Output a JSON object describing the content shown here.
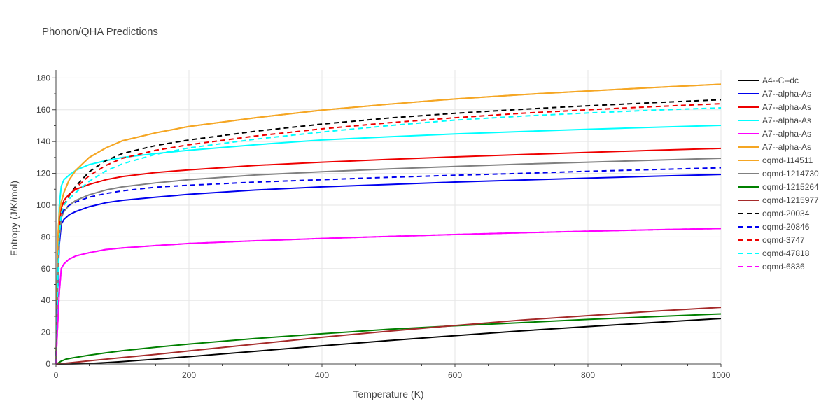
{
  "chart_data": {
    "type": "line",
    "title": "Phonon/QHA Predictions",
    "xlabel": "Temperature (K)",
    "ylabel": "Entropy (J/K/mol)",
    "xlim": [
      0,
      1000
    ],
    "ylim": [
      0,
      185
    ],
    "x_ticks": [
      "0",
      "200",
      "400",
      "600",
      "800",
      "1000"
    ],
    "y_ticks": [
      "0",
      "20",
      "40",
      "60",
      "80",
      "100",
      "120",
      "140",
      "160",
      "180"
    ],
    "grid": true,
    "legend_position": "right",
    "series": [
      {
        "name": "A4--C--dc",
        "color": "#000000",
        "dash": "solid",
        "x": [
          0,
          25,
          50,
          75,
          100,
          150,
          200,
          300,
          400,
          500,
          600,
          700,
          800,
          900,
          1000
        ],
        "y": [
          0,
          0.05,
          0.3,
          0.8,
          1.5,
          3.0,
          4.6,
          8.0,
          11.4,
          14.7,
          17.8,
          20.8,
          23.5,
          26.1,
          28.6
        ]
      },
      {
        "name": "A7--alpha-As",
        "color": "#0000ee",
        "dash": "solid",
        "x": [
          0,
          2,
          5,
          8,
          12,
          20,
          30,
          50,
          75,
          100,
          150,
          200,
          300,
          400,
          500,
          600,
          700,
          800,
          900,
          1000
        ],
        "y": [
          0,
          40,
          75,
          88,
          91,
          94,
          96,
          99,
          101.5,
          103,
          105,
          106.8,
          109.5,
          111.5,
          113,
          114.5,
          115.8,
          117,
          118.2,
          119.3
        ]
      },
      {
        "name": "A7--alpha-As",
        "color": "#ee0000",
        "dash": "solid",
        "x": [
          0,
          2,
          5,
          8,
          12,
          20,
          30,
          50,
          75,
          100,
          150,
          200,
          300,
          400,
          500,
          600,
          700,
          800,
          900,
          1000
        ],
        "y": [
          0,
          45,
          85,
          98,
          103,
          107,
          110,
          113,
          116,
          118,
          120.5,
          122.2,
          125,
          127,
          128.8,
          130.4,
          131.8,
          133.2,
          134.5,
          135.7
        ]
      },
      {
        "name": "A7--alpha-As",
        "color": "#00ffff",
        "dash": "solid",
        "x": [
          0,
          2,
          5,
          8,
          12,
          20,
          30,
          50,
          75,
          100,
          150,
          200,
          300,
          400,
          500,
          600,
          700,
          800,
          900,
          1000
        ],
        "y": [
          0,
          60,
          100,
          112,
          116,
          119,
          122,
          125.5,
          128,
          130,
          132.5,
          134.5,
          138,
          141,
          143,
          144.8,
          146.3,
          147.7,
          149,
          150.2
        ]
      },
      {
        "name": "A7--alpha-As",
        "color": "#ff00ff",
        "dash": "solid",
        "x": [
          0,
          2,
          5,
          8,
          12,
          20,
          30,
          50,
          75,
          100,
          150,
          200,
          300,
          400,
          500,
          600,
          700,
          800,
          900,
          1000
        ],
        "y": [
          0,
          20,
          45,
          60,
          63,
          66,
          68,
          70,
          72,
          73,
          74.5,
          75.8,
          77.5,
          79,
          80.3,
          81.5,
          82.6,
          83.6,
          84.5,
          85.3
        ]
      },
      {
        "name": "A7--alpha-As",
        "color": "#f5a623",
        "dash": "solid",
        "x": [
          0,
          3,
          5,
          8,
          12,
          20,
          30,
          50,
          75,
          100,
          150,
          200,
          300,
          400,
          500,
          600,
          700,
          800,
          900,
          1000
        ],
        "y": [
          0,
          80,
          95,
          102,
          108,
          116,
          122,
          130,
          136,
          140.5,
          145.5,
          149.5,
          155,
          159.8,
          163.5,
          166.8,
          169.5,
          171.8,
          174,
          176
        ]
      },
      {
        "name": "oqmd-114511",
        "color": "#f5a623",
        "dash": "solid",
        "x": [
          0,
          3,
          5,
          8,
          12,
          20,
          30,
          50,
          75,
          100,
          150,
          200,
          300,
          400,
          500,
          600,
          700,
          800,
          900,
          1000
        ],
        "y": [
          0,
          80,
          95,
          102,
          108,
          116,
          122,
          130,
          136,
          140.5,
          145.5,
          149.5,
          155,
          159.8,
          163.5,
          166.8,
          169.5,
          171.8,
          174,
          176
        ]
      },
      {
        "name": "oqmd-1214730",
        "color": "#808080",
        "dash": "solid",
        "x": [
          0,
          2,
          5,
          8,
          12,
          20,
          30,
          50,
          75,
          100,
          150,
          200,
          300,
          400,
          500,
          600,
          700,
          800,
          900,
          1000
        ],
        "y": [
          0,
          40,
          78,
          92,
          96,
          100,
          103,
          106.5,
          109.5,
          111.5,
          114,
          116,
          119,
          121,
          122.8,
          124.3,
          125.8,
          127,
          128.3,
          129.5
        ]
      },
      {
        "name": "oqmd-1215264",
        "color": "#008000",
        "dash": "solid",
        "x": [
          0,
          3,
          8,
          15,
          25,
          50,
          75,
          100,
          150,
          200,
          300,
          400,
          500,
          600,
          700,
          800,
          900,
          1000
        ],
        "y": [
          0,
          0.5,
          1.8,
          3.0,
          3.8,
          5.5,
          7.0,
          8.3,
          10.5,
          12.5,
          16.0,
          19.0,
          21.8,
          24.0,
          26.0,
          28.0,
          29.8,
          31.5
        ]
      },
      {
        "name": "oqmd-1215977",
        "color": "#a52a2a",
        "dash": "solid",
        "x": [
          0,
          10,
          25,
          50,
          75,
          100,
          150,
          200,
          300,
          400,
          500,
          600,
          700,
          800,
          900,
          1000
        ],
        "y": [
          0,
          0.3,
          0.9,
          2.0,
          3.0,
          4.0,
          6.0,
          8.2,
          12.5,
          16.8,
          20.6,
          24.2,
          27.6,
          30.4,
          33.2,
          35.6
        ]
      },
      {
        "name": "oqmd-20034",
        "color": "#000000",
        "dash": "dash",
        "x": [
          0,
          3,
          5,
          8,
          12,
          20,
          30,
          50,
          75,
          100,
          150,
          200,
          300,
          400,
          500,
          600,
          700,
          800,
          900,
          1000
        ],
        "y": [
          0,
          55,
          80,
          96,
          100,
          106,
          112,
          121,
          128,
          132.5,
          137.5,
          141,
          146.5,
          151,
          154.8,
          157.8,
          160.3,
          162.5,
          164.5,
          166.3
        ]
      },
      {
        "name": "oqmd-20846",
        "color": "#0000ee",
        "dash": "dash",
        "x": [
          0,
          2,
          5,
          8,
          12,
          20,
          30,
          50,
          75,
          100,
          150,
          200,
          300,
          400,
          500,
          600,
          700,
          800,
          900,
          1000
        ],
        "y": [
          0,
          40,
          78,
          94,
          97,
          100,
          102,
          105,
          107.3,
          109,
          111.3,
          112.5,
          114.5,
          116,
          117.5,
          118.8,
          120,
          121.3,
          122.4,
          123.5
        ]
      },
      {
        "name": "oqmd-3747",
        "color": "#ee0000",
        "dash": "dash",
        "x": [
          0,
          3,
          5,
          8,
          12,
          20,
          30,
          50,
          75,
          100,
          150,
          200,
          300,
          400,
          500,
          600,
          700,
          800,
          900,
          1000
        ],
        "y": [
          0,
          55,
          80,
          96,
          100,
          106,
          111,
          118.5,
          125,
          129.5,
          134.5,
          138,
          143.5,
          148,
          151.8,
          155,
          157.8,
          160,
          162,
          163.8
        ]
      },
      {
        "name": "oqmd-47818",
        "color": "#00ffff",
        "dash": "dash",
        "x": [
          0,
          3,
          5,
          8,
          12,
          20,
          30,
          50,
          75,
          100,
          150,
          200,
          300,
          400,
          500,
          600,
          700,
          800,
          900,
          1000
        ],
        "y": [
          0,
          55,
          80,
          95,
          100,
          104,
          108,
          115,
          121.5,
          126,
          132,
          136,
          141.5,
          146,
          150,
          153.5,
          156,
          158,
          159.8,
          161.2
        ]
      },
      {
        "name": "oqmd-6836",
        "color": "#ff00ff",
        "dash": "dash",
        "x": [
          0,
          2,
          5,
          8,
          12,
          20,
          30,
          50,
          75,
          100,
          150,
          200,
          300,
          400,
          500,
          600,
          700,
          800,
          900,
          1000
        ],
        "y": [
          0,
          20,
          45,
          60,
          63,
          66,
          68,
          70,
          72,
          73,
          74.5,
          75.8,
          77.5,
          79,
          80.3,
          81.5,
          82.6,
          83.6,
          84.5,
          85.3
        ]
      }
    ]
  }
}
